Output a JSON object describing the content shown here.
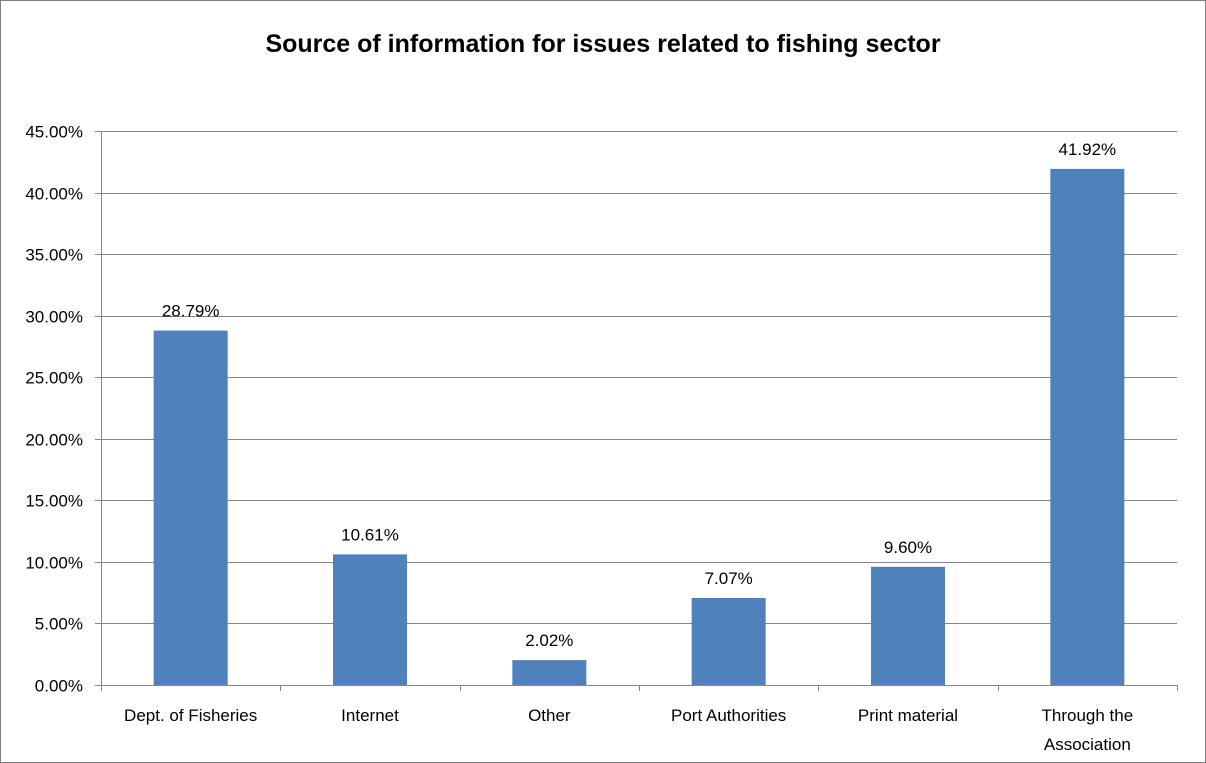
{
  "chart_data": {
    "type": "bar",
    "title": "Source of information for issues related to fishing sector",
    "categories": [
      [
        "Dept. of Fisheries"
      ],
      [
        "Internet"
      ],
      [
        "Other"
      ],
      [
        "Port Authorities"
      ],
      [
        "Print material"
      ],
      [
        "Through the",
        "Association"
      ]
    ],
    "values": [
      28.79,
      10.61,
      2.02,
      7.07,
      9.6,
      41.92
    ],
    "data_labels": [
      "28.79%",
      "10.61%",
      "2.02%",
      "7.07%",
      "9.60%",
      "41.92%"
    ],
    "ylim": [
      0,
      45
    ],
    "yticks": [
      0,
      5,
      10,
      15,
      20,
      25,
      30,
      35,
      40,
      45
    ],
    "ytick_labels": [
      "0.00%",
      "5.00%",
      "10.00%",
      "15.00%",
      "20.00%",
      "25.00%",
      "30.00%",
      "35.00%",
      "40.00%",
      "45.00%"
    ],
    "grid": true,
    "legend": "none",
    "bar_color": "#4f81bd",
    "grid_color": "#868686"
  }
}
